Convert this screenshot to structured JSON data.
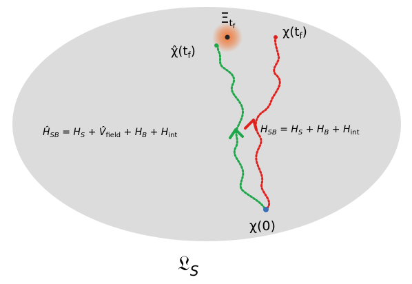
{
  "diagram": {
    "domain_symbol": "𝔏",
    "domain_subscript": "S",
    "target_symbol": "Ξ",
    "target_subscript": "t",
    "target_subsubscript": "f",
    "start_label": "χ(0)",
    "exact_end_label": "χ(t",
    "exact_end_sub": "f",
    "exact_end_close": ")",
    "approx_end_label": "χ̂(t",
    "approx_end_sub": "f",
    "approx_end_close": ")",
    "left_hamiltonian": {
      "H1": "Ĥ",
      "H1_sub": "SB",
      "eq": " = ",
      "H2": "H",
      "H2_sub": "S",
      "plus1": " + ",
      "V": "V̂",
      "V_sub": "field",
      "plus2": " + ",
      "H3": "H",
      "H3_sub": "B",
      "plus3": " + ",
      "H4": "H",
      "H4_sub": "int"
    },
    "right_hamiltonian": {
      "H1": "H",
      "H1_sub": "SB",
      "eq": " = ",
      "H2": "H",
      "H2_sub": "S",
      "plus1": " + ",
      "H3": "H",
      "H3_sub": "B",
      "plus2": " + ",
      "H4": "H",
      "H4_sub": "int"
    },
    "colors": {
      "domain_fill": "#dcdcdc",
      "exact_path": "#e0201c",
      "approx_path": "#1fa64a",
      "start_point": "#3a6fb7",
      "glow": "#f0793a",
      "target_point": "#222222"
    }
  }
}
